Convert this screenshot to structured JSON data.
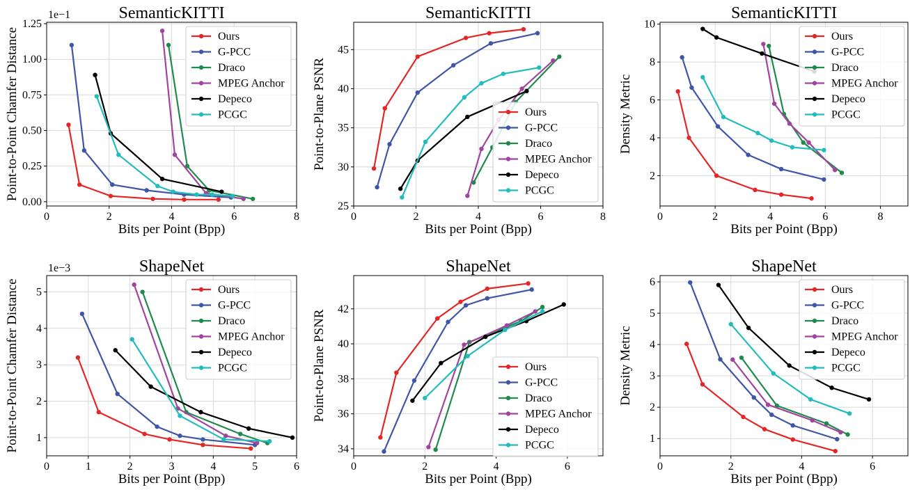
{
  "series_colors": {
    "Ours": "#e32626",
    "G-PCC": "#3f55a6",
    "Draco": "#1f8a4c",
    "MPEG Anchor": "#a0449f",
    "Depeco": "#000000",
    "PCGC": "#22bcbc"
  },
  "chart_data": [
    {
      "type": "line",
      "title": "SemanticKITTI",
      "xlabel": "Bits per Point (Bpp)",
      "ylabel": "Point-to-Point Chamfer Distance",
      "scale_label": "1e−1",
      "xlim": [
        0,
        8
      ],
      "ylim": [
        -0.03,
        1.26
      ],
      "xticks": [
        0,
        2,
        4,
        6,
        8
      ],
      "xtick_labels": [
        "0",
        "2",
        "4",
        "6",
        "8"
      ],
      "yticks": [
        0,
        0.25,
        0.5,
        0.75,
        1.0,
        1.25
      ],
      "ytick_labels": [
        "0.00",
        "0.25",
        "0.50",
        "0.75",
        "1.00",
        "1.25"
      ],
      "grid": true,
      "legend": "top-right",
      "series": [
        {
          "name": "Ours",
          "x": [
            0.7,
            1.05,
            2.05,
            3.4,
            4.4,
            5.5
          ],
          "y": [
            0.54,
            0.12,
            0.04,
            0.02,
            0.015,
            0.015
          ]
        },
        {
          "name": "G-PCC",
          "x": [
            0.8,
            1.2,
            2.1,
            3.2,
            4.4,
            5.9
          ],
          "y": [
            1.1,
            0.36,
            0.12,
            0.08,
            0.05,
            0.03
          ]
        },
        {
          "name": "Draco",
          "x": [
            3.9,
            4.5,
            5.2,
            6.6
          ],
          "y": [
            1.1,
            0.25,
            0.08,
            0.02
          ]
        },
        {
          "name": "MPEG Anchor",
          "x": [
            3.7,
            4.1,
            5.1,
            6.3
          ],
          "y": [
            1.2,
            0.33,
            0.06,
            0.02
          ]
        },
        {
          "name": "Depeco",
          "x": [
            1.55,
            2.05,
            3.7,
            5.6
          ],
          "y": [
            0.89,
            0.48,
            0.16,
            0.07
          ]
        },
        {
          "name": "PCGC",
          "x": [
            1.6,
            2.3,
            3.55,
            4.05,
            4.8,
            5.3,
            5.95
          ],
          "y": [
            0.74,
            0.33,
            0.11,
            0.07,
            0.05,
            0.05,
            0.04
          ]
        }
      ]
    },
    {
      "type": "line",
      "title": "SemanticKITTI",
      "xlabel": "Bits per Point (Bpp)",
      "ylabel": "Point-to-Plane PSNR",
      "scale_label": "",
      "xlim": [
        0,
        8
      ],
      "ylim": [
        25,
        48.5
      ],
      "xticks": [
        0,
        2,
        4,
        6,
        8
      ],
      "xtick_labels": [
        "0",
        "2",
        "4",
        "6",
        "8"
      ],
      "yticks": [
        25,
        30,
        35,
        40,
        45
      ],
      "ytick_labels": [
        "25",
        "30",
        "35",
        "40",
        "45"
      ],
      "grid": true,
      "legend": "bottom-right",
      "series": [
        {
          "name": "Ours",
          "x": [
            0.65,
            1.0,
            2.05,
            3.6,
            4.35,
            5.45
          ],
          "y": [
            29.8,
            37.5,
            44.1,
            46.5,
            47.1,
            47.6
          ]
        },
        {
          "name": "G-PCC",
          "x": [
            0.75,
            1.15,
            2.05,
            3.2,
            4.4,
            5.9
          ],
          "y": [
            27.4,
            32.9,
            39.5,
            43.0,
            45.8,
            47.1
          ]
        },
        {
          "name": "Draco",
          "x": [
            3.85,
            4.45,
            5.2,
            6.6
          ],
          "y": [
            28.0,
            32.5,
            38.3,
            44.1
          ]
        },
        {
          "name": "MPEG Anchor",
          "x": [
            3.65,
            4.1,
            4.65,
            5.4,
            6.4
          ],
          "y": [
            26.3,
            32.3,
            36.0,
            40.0,
            43.6
          ]
        },
        {
          "name": "Depeco",
          "x": [
            1.5,
            2.05,
            3.65,
            5.55
          ],
          "y": [
            27.2,
            30.8,
            36.4,
            39.7
          ]
        },
        {
          "name": "PCGC",
          "x": [
            1.55,
            2.3,
            3.55,
            4.1,
            4.8,
            5.95
          ],
          "y": [
            26.1,
            33.2,
            38.9,
            40.7,
            41.9,
            42.7
          ]
        }
      ]
    },
    {
      "type": "line",
      "title": "SemanticKITTI",
      "xlabel": "Bits per Point (Bpp)",
      "ylabel": "Density Metric",
      "scale_label": "",
      "xlim": [
        0,
        9
      ],
      "ylim": [
        0.4,
        10.1
      ],
      "xticks": [
        0,
        2,
        4,
        6,
        8
      ],
      "xtick_labels": [
        "0",
        "2",
        "4",
        "6",
        "8"
      ],
      "yticks": [
        2,
        4,
        6,
        8,
        10
      ],
      "ytick_labels": [
        "2",
        "4",
        "6",
        "8",
        "10"
      ],
      "grid": true,
      "legend": "top-right",
      "series": [
        {
          "name": "Ours",
          "x": [
            0.65,
            1.05,
            2.05,
            3.45,
            4.4,
            5.5
          ],
          "y": [
            6.45,
            4.0,
            2.0,
            1.25,
            1.0,
            0.8
          ]
        },
        {
          "name": "G-PCC",
          "x": [
            0.8,
            1.15,
            2.1,
            3.2,
            4.4,
            5.95
          ],
          "y": [
            8.25,
            6.65,
            4.6,
            3.1,
            2.35,
            1.8
          ]
        },
        {
          "name": "Draco",
          "x": [
            3.95,
            4.5,
            5.2,
            6.6
          ],
          "y": [
            8.85,
            5.25,
            3.75,
            2.15
          ]
        },
        {
          "name": "MPEG Anchor",
          "x": [
            3.75,
            4.15,
            4.7,
            5.4,
            6.35
          ],
          "y": [
            8.95,
            5.8,
            4.75,
            3.75,
            2.3
          ]
        },
        {
          "name": "Depeco",
          "x": [
            1.55,
            2.05,
            3.7,
            5.6
          ],
          "y": [
            9.75,
            9.3,
            8.45,
            7.5
          ]
        },
        {
          "name": "PCGC",
          "x": [
            1.55,
            2.3,
            3.55,
            4.05,
            4.8,
            5.95
          ],
          "y": [
            7.2,
            5.1,
            4.25,
            3.85,
            3.5,
            3.35
          ]
        }
      ]
    },
    {
      "type": "line",
      "title": "ShapeNet",
      "xlabel": "Bits per Point (Bpp)",
      "ylabel": "Point-to-Point Chamfer Distance",
      "scale_label": "1e−3",
      "xlim": [
        0,
        6
      ],
      "ylim": [
        0.5,
        5.45
      ],
      "xticks": [
        0,
        1,
        2,
        3,
        4,
        5,
        6
      ],
      "xtick_labels": [
        "0",
        "1",
        "2",
        "3",
        "4",
        "5",
        "6"
      ],
      "yticks": [
        1,
        2,
        3,
        4,
        5
      ],
      "ytick_labels": [
        "1",
        "2",
        "3",
        "4",
        "5"
      ],
      "grid": true,
      "legend": "top-right",
      "series": [
        {
          "name": "Ours",
          "x": [
            0.75,
            1.25,
            2.35,
            2.95,
            3.75,
            4.9
          ],
          "y": [
            3.2,
            1.7,
            1.1,
            0.95,
            0.8,
            0.7
          ]
        },
        {
          "name": "G-PCC",
          "x": [
            0.85,
            1.7,
            2.65,
            3.2,
            3.75,
            5.0
          ],
          "y": [
            4.4,
            2.2,
            1.3,
            1.05,
            0.95,
            0.8
          ]
        },
        {
          "name": "Draco",
          "x": [
            2.3,
            3.35,
            4.65,
            5.3
          ],
          "y": [
            5.0,
            1.7,
            1.1,
            0.85
          ]
        },
        {
          "name": "MPEG Anchor",
          "x": [
            2.1,
            3.15,
            4.3,
            5.05
          ],
          "y": [
            5.2,
            1.8,
            1.05,
            0.85
          ]
        },
        {
          "name": "Depeco",
          "x": [
            1.65,
            2.5,
            3.7,
            4.85,
            5.9
          ],
          "y": [
            3.4,
            2.4,
            1.7,
            1.25,
            1.0
          ]
        },
        {
          "name": "PCGC",
          "x": [
            2.05,
            3.2,
            4.25,
            5.35
          ],
          "y": [
            3.7,
            1.6,
            0.95,
            0.9
          ]
        }
      ]
    },
    {
      "type": "line",
      "title": "ShapeNet",
      "xlabel": "Bits per Point (Bpp)",
      "ylabel": "Point-to-Plane PSNR",
      "scale_label": "",
      "xlim": [
        0,
        7
      ],
      "ylim": [
        33.6,
        43.9
      ],
      "xticks": [
        0,
        2,
        4,
        6
      ],
      "xtick_labels": [
        "0",
        "2",
        "4",
        "6"
      ],
      "yticks": [
        34,
        36,
        38,
        40,
        42
      ],
      "ytick_labels": [
        "34",
        "36",
        "38",
        "40",
        "42"
      ],
      "grid": true,
      "legend": "bottom-right",
      "series": [
        {
          "name": "Ours",
          "x": [
            0.75,
            1.2,
            2.35,
            3.0,
            3.75,
            4.9
          ],
          "y": [
            34.65,
            38.35,
            41.45,
            42.4,
            43.15,
            43.45
          ]
        },
        {
          "name": "G-PCC",
          "x": [
            0.85,
            1.7,
            2.65,
            3.15,
            3.75,
            5.0
          ],
          "y": [
            33.85,
            37.9,
            41.25,
            42.2,
            42.6,
            43.1
          ]
        },
        {
          "name": "Draco",
          "x": [
            2.3,
            3.25,
            4.7,
            5.3
          ],
          "y": [
            33.95,
            40.1,
            41.3,
            42.1
          ]
        },
        {
          "name": "MPEG Anchor",
          "x": [
            2.1,
            3.1,
            4.3,
            5.1
          ],
          "y": [
            34.1,
            39.95,
            41.05,
            41.85
          ]
        },
        {
          "name": "Depeco",
          "x": [
            1.65,
            2.45,
            3.7,
            4.85,
            5.9
          ],
          "y": [
            36.75,
            38.9,
            40.4,
            41.3,
            42.25
          ]
        },
        {
          "name": "PCGC",
          "x": [
            2.0,
            3.2,
            4.25,
            5.3
          ],
          "y": [
            36.9,
            39.3,
            40.8,
            41.85
          ]
        }
      ]
    },
    {
      "type": "line",
      "title": "ShapeNet",
      "xlabel": "Bits per Point (Bpp)",
      "ylabel": "Density Metric",
      "scale_label": "",
      "xlim": [
        0,
        7
      ],
      "ylim": [
        0.45,
        6.2
      ],
      "xticks": [
        0,
        2,
        4,
        6
      ],
      "xtick_labels": [
        "0",
        "2",
        "4",
        "6"
      ],
      "yticks": [
        1,
        2,
        3,
        4,
        5,
        6
      ],
      "ytick_labels": [
        "1",
        "2",
        "3",
        "4",
        "5",
        "6"
      ],
      "grid": true,
      "legend": "top-right",
      "series": [
        {
          "name": "Ours",
          "x": [
            0.75,
            1.2,
            2.35,
            2.95,
            3.75,
            4.95
          ],
          "y": [
            4.02,
            2.73,
            1.69,
            1.3,
            0.97,
            0.6
          ]
        },
        {
          "name": "G-PCC",
          "x": [
            0.85,
            1.7,
            2.65,
            3.15,
            3.75,
            5.0
          ],
          "y": [
            5.98,
            3.53,
            2.31,
            1.76,
            1.42,
            0.98
          ]
        },
        {
          "name": "Draco",
          "x": [
            2.3,
            3.3,
            4.7,
            5.3
          ],
          "y": [
            3.58,
            2.05,
            1.48,
            1.13
          ]
        },
        {
          "name": "MPEG Anchor",
          "x": [
            2.05,
            3.05,
            4.3,
            5.1
          ],
          "y": [
            3.52,
            2.08,
            1.58,
            1.2
          ]
        },
        {
          "name": "Depeco",
          "x": [
            1.65,
            2.5,
            3.65,
            4.85,
            5.9
          ],
          "y": [
            5.9,
            4.53,
            3.33,
            2.62,
            2.25
          ]
        },
        {
          "name": "PCGC",
          "x": [
            2.0,
            3.2,
            4.25,
            5.35
          ],
          "y": [
            4.65,
            3.08,
            2.25,
            1.8
          ]
        }
      ]
    }
  ]
}
